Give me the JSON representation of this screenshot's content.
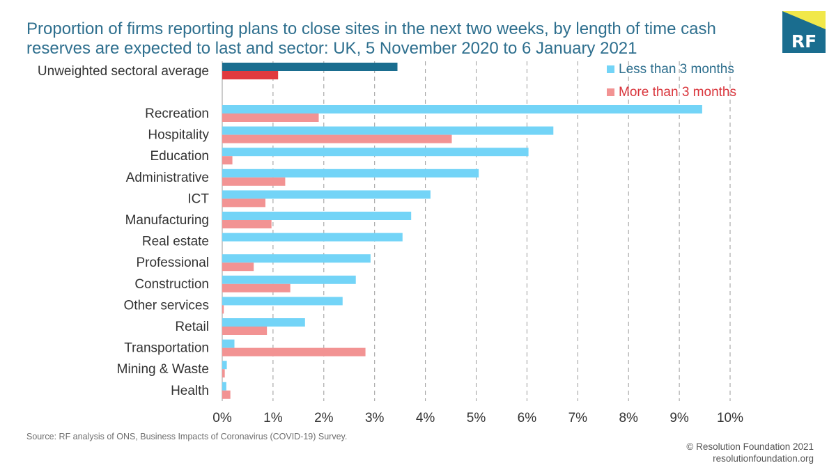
{
  "title": "Proportion of firms reporting plans to close sites in the next two weeks, by length of time cash reserves are expected to last and sector: UK, 5 November 2020 to 6 January 2021",
  "logo_text": "RF",
  "source": "Source: RF analysis of ONS, Business Impacts of Coronavirus (COVID-19) Survey.",
  "footer": {
    "copyright": "© Resolution Foundation 2021",
    "url": "resolutionfoundation.org"
  },
  "colors": {
    "less_than_3": "#73d4f7",
    "more_than_3": "#f29393",
    "avg_less_than_3": "#1a6d8f",
    "avg_more_than_3": "#e13a3f",
    "title": "#2e6f8e",
    "legend_less": "#2e6f8e",
    "legend_more": "#d9343b"
  },
  "chart_data": {
    "type": "bar",
    "orientation": "horizontal",
    "categories": [
      "Unweighted sectoral average",
      "Recreation",
      "Hospitality",
      "Education",
      "Administrative",
      "ICT",
      "Manufacturing",
      "Real estate",
      "Professional",
      "Construction",
      "Other services",
      "Retail",
      "Transportation",
      "Mining & Waste",
      "Health"
    ],
    "series": [
      {
        "name": "Less than 3 months",
        "values": [
          3.45,
          9.45,
          6.52,
          6.03,
          5.05,
          4.1,
          3.72,
          3.55,
          2.92,
          2.63,
          2.37,
          1.63,
          0.24,
          0.09,
          0.08
        ]
      },
      {
        "name": "More than 3 months",
        "values": [
          1.1,
          1.9,
          4.52,
          0.2,
          1.24,
          0.85,
          0.97,
          0.0,
          0.62,
          1.34,
          0.03,
          0.88,
          2.82,
          0.05,
          0.16
        ]
      }
    ],
    "xlim": [
      0,
      10
    ],
    "xticks": [
      "0%",
      "1%",
      "2%",
      "3%",
      "4%",
      "5%",
      "6%",
      "7%",
      "8%",
      "9%",
      "10%"
    ],
    "grid": "vertical dashed",
    "legend_position": "top-right"
  }
}
